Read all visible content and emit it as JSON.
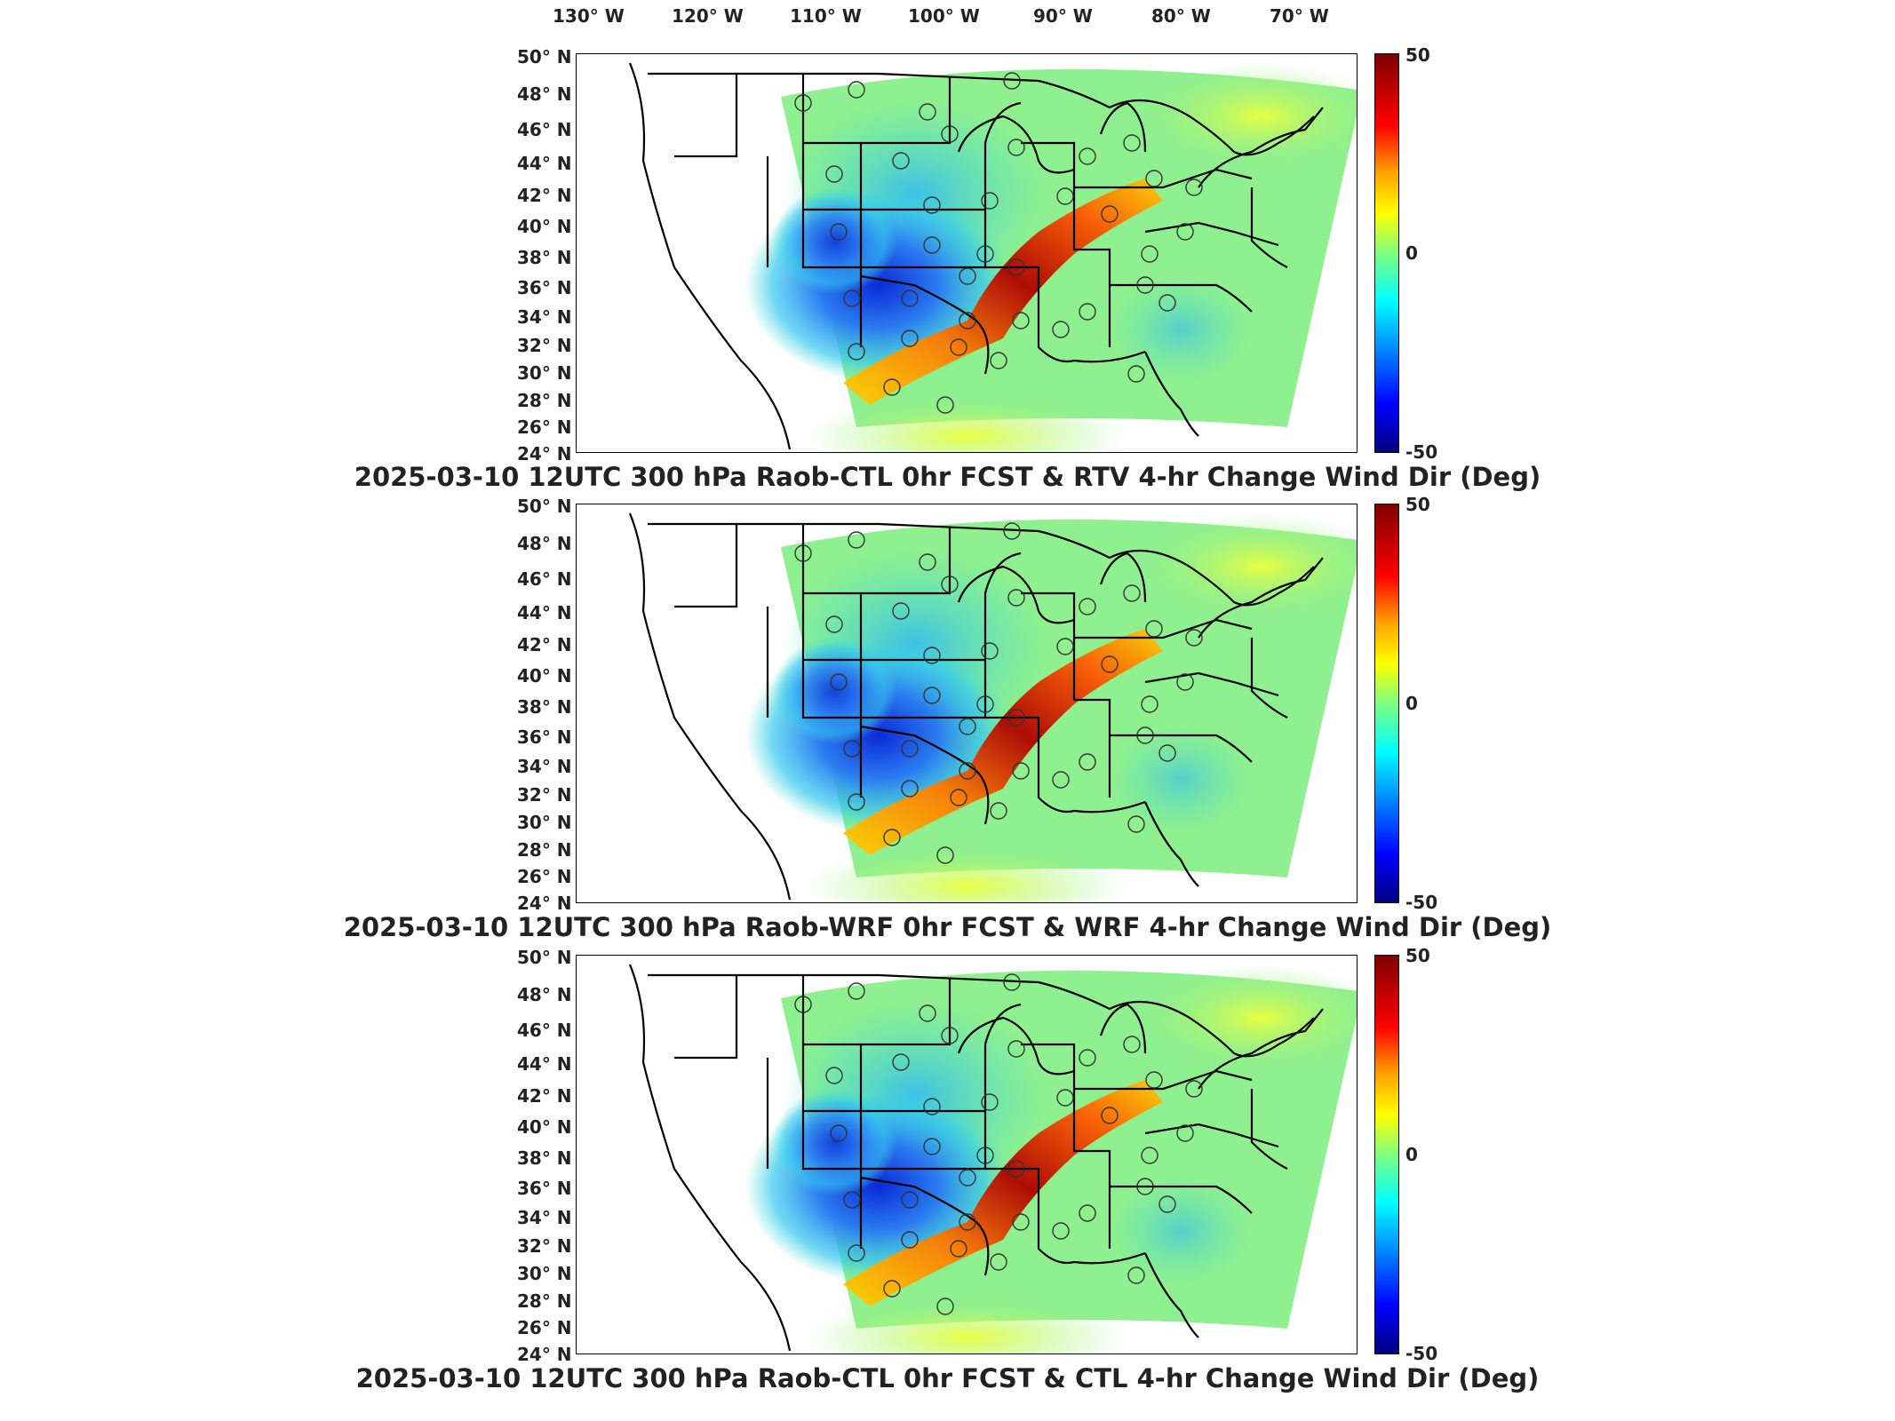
{
  "lon_labels": [
    "130° W",
    "120° W",
    "110° W",
    "100° W",
    "90° W",
    "80° W",
    "70° W"
  ],
  "lat_labels": [
    "50° N",
    "48° N",
    "46° N",
    "44° N",
    "42° N",
    "40° N",
    "38° N",
    "36° N",
    "34° N",
    "32° N",
    "30° N",
    "28° N",
    "26° N",
    "24° N"
  ],
  "colorbar": {
    "max": "50",
    "mid": "0",
    "min": "-50",
    "colormap": "jet"
  },
  "panels": [
    {
      "title": "2025-03-10 12UTC 300 hPa Raob-CTL 0hr FCST & RTV 4-hr Change Wind Dir (Deg)"
    },
    {
      "title": "2025-03-10 12UTC 300 hPa Raob-WRF 0hr FCST & WRF 4-hr Change Wind Dir (Deg)"
    },
    {
      "title": "2025-03-10 12UTC 300 hPa Raob-CTL 0hr FCST & CTL 4-hr Change Wind Dir (Deg)"
    }
  ],
  "colors": {
    "field_background": "#8ff08f",
    "low_blue": "#1a52e6",
    "high_red": "#b30000"
  }
}
